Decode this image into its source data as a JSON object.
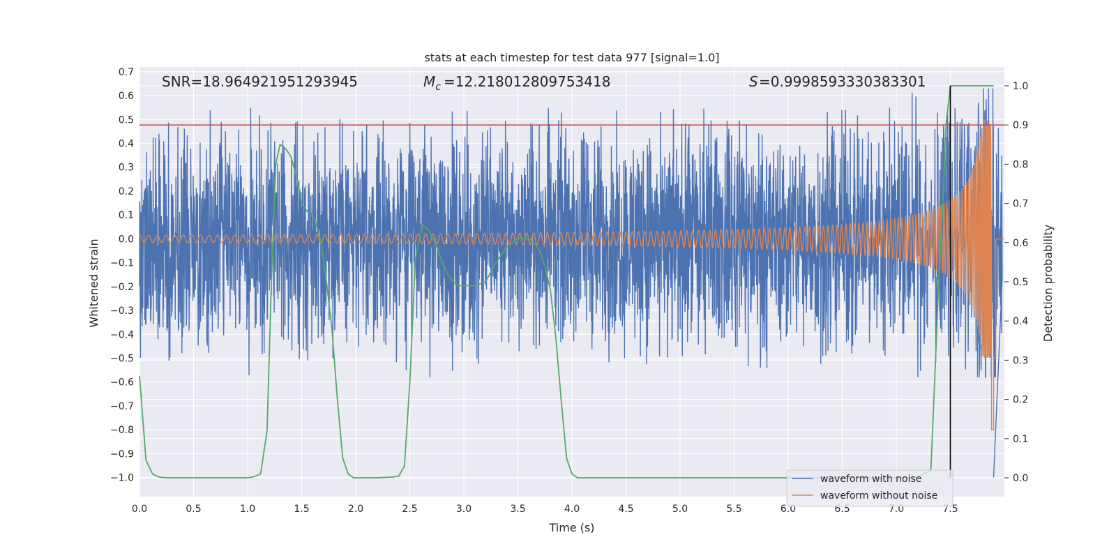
{
  "chart_data": {
    "type": "line",
    "title": "stats at each timestep for test data 977 [signal=1.0]",
    "xlabel": "Time (s)",
    "ylabel_left": "Whitened strain",
    "ylabel_right": "Detection probability",
    "xlim": [
      0.0,
      8.0
    ],
    "ylim_left": [
      -1.08,
      0.72
    ],
    "ylim_right": [
      -0.048,
      1.048
    ],
    "x_ticks": [
      "0.0",
      "0.5",
      "1.0",
      "1.5",
      "2.0",
      "2.5",
      "3.0",
      "3.5",
      "4.0",
      "4.5",
      "5.0",
      "5.5",
      "6.0",
      "6.5",
      "7.0",
      "7.5"
    ],
    "x_tick_values": [
      0.0,
      0.5,
      1.0,
      1.5,
      2.0,
      2.5,
      3.0,
      3.5,
      4.0,
      4.5,
      5.0,
      5.5,
      6.0,
      6.5,
      7.0,
      7.5
    ],
    "y_ticks_left": [
      "0.7",
      "0.6",
      "0.5",
      "0.4",
      "0.3",
      "0.2",
      "0.1",
      "0.0",
      "−0.1",
      "−0.2",
      "−0.3",
      "−0.4",
      "−0.5",
      "−0.6",
      "−0.7",
      "−0.8",
      "−0.9",
      "−1.0"
    ],
    "y_tick_values_left": [
      0.7,
      0.6,
      0.5,
      0.4,
      0.3,
      0.2,
      0.1,
      0.0,
      -0.1,
      -0.2,
      -0.3,
      -0.4,
      -0.5,
      -0.6,
      -0.7,
      -0.8,
      -0.9,
      -1.0
    ],
    "y_ticks_right": [
      "1.0",
      "0.9",
      "0.8",
      "0.7",
      "0.6",
      "0.5",
      "0.4",
      "0.3",
      "0.2",
      "0.1",
      "0.0"
    ],
    "y_tick_values_right": [
      1.0,
      0.9,
      0.8,
      0.7,
      0.6,
      0.5,
      0.4,
      0.3,
      0.2,
      0.1,
      0.0
    ],
    "stats": {
      "snr_label": "SNR=18.964921951293945",
      "mc_label": "=12.218012809753418",
      "s_label": "=0.9998593330383301"
    },
    "threshold_probability": 0.9,
    "detection_time": 7.5,
    "series": [
      {
        "name": "waveform with noise",
        "color": "#4c72b0",
        "axis": "left",
        "envelope": {
          "upper_typical": 0.25,
          "lower_typical": -0.3,
          "upper_peak": 0.63,
          "lower_peak": -1.0
        }
      },
      {
        "name": "waveform without noise",
        "color": "#dd8452",
        "axis": "left",
        "envelope": {
          "start_amplitude": 0.015,
          "merger_time": 7.9,
          "peak_high": 0.54,
          "peak_low": -0.8
        }
      },
      {
        "name": "detection probability",
        "color": "#55a868",
        "axis": "right",
        "x": [
          0.0,
          0.06,
          0.12,
          0.18,
          0.25,
          0.4,
          0.6,
          0.8,
          1.0,
          1.05,
          1.12,
          1.18,
          1.22,
          1.26,
          1.3,
          1.35,
          1.4,
          1.45,
          1.5,
          1.55,
          1.62,
          1.68,
          1.73,
          1.78,
          1.83,
          1.88,
          1.93,
          1.98,
          2.05,
          2.2,
          2.35,
          2.4,
          2.45,
          2.5,
          2.55,
          2.58,
          2.62,
          2.68,
          2.75,
          2.8,
          2.85,
          2.9,
          2.95,
          3.0,
          3.1,
          3.2,
          3.3,
          3.4,
          3.5,
          3.6,
          3.65,
          3.7,
          3.75,
          3.8,
          3.85,
          3.9,
          3.95,
          4.0,
          4.05,
          4.2,
          4.5,
          5.0,
          5.5,
          6.0,
          6.5,
          7.0,
          7.2,
          7.32,
          7.36,
          7.4,
          7.43,
          7.46,
          7.5,
          7.55,
          7.6,
          7.7,
          7.8,
          7.9
        ],
        "y": [
          0.26,
          0.045,
          0.01,
          0.002,
          0.0,
          0.0,
          0.0,
          0.0,
          0.0,
          0.002,
          0.01,
          0.12,
          0.5,
          0.8,
          0.85,
          0.84,
          0.82,
          0.77,
          0.7,
          0.68,
          0.66,
          0.6,
          0.5,
          0.38,
          0.2,
          0.05,
          0.01,
          0.0,
          0.0,
          0.0,
          0.002,
          0.005,
          0.03,
          0.24,
          0.55,
          0.6,
          0.645,
          0.63,
          0.59,
          0.55,
          0.52,
          0.5,
          0.49,
          0.49,
          0.49,
          0.5,
          0.55,
          0.59,
          0.61,
          0.61,
          0.6,
          0.58,
          0.54,
          0.48,
          0.36,
          0.2,
          0.05,
          0.01,
          0.0,
          0.0,
          0.0,
          0.0,
          0.0,
          0.0,
          0.0,
          0.0,
          0.002,
          0.02,
          0.28,
          0.55,
          0.7,
          0.9,
          1.0,
          1.0,
          1.0,
          1.0,
          1.0,
          1.0
        ]
      }
    ],
    "legend": {
      "position": "lower-right",
      "entries": [
        "waveform with noise",
        "waveform without noise"
      ]
    }
  }
}
